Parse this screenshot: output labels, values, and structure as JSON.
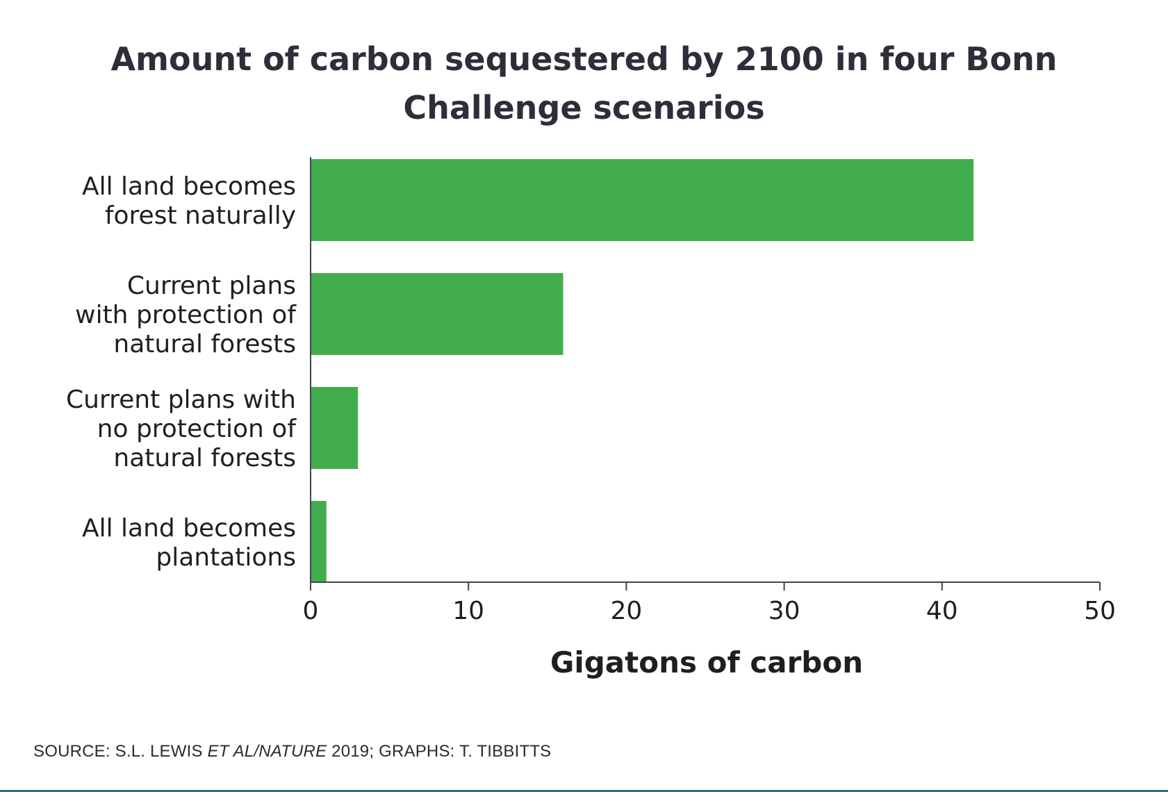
{
  "chart_data": {
    "type": "bar",
    "orientation": "horizontal",
    "title": "Amount of carbon sequestered by 2100 in four Bonn Challenge scenarios",
    "categories": [
      [
        "All land becomes",
        "forest naturally"
      ],
      [
        "Current plans",
        "with protection of",
        "natural forests"
      ],
      [
        "Current plans with",
        "no protection of",
        "natural forests"
      ],
      [
        "All land becomes",
        "plantations"
      ]
    ],
    "values": [
      42,
      16,
      3,
      1
    ],
    "xlabel": "Gigatons of carbon",
    "ylabel": "",
    "xlim": [
      0,
      50
    ],
    "ticks": [
      "0",
      "10",
      "20",
      "30",
      "40",
      "50"
    ],
    "grid": false,
    "bar_color": "#42ad4e"
  },
  "source": {
    "prefix": "SOURCE: S.L. LEWIS ",
    "italic": "ET AL/NATURE",
    "suffix": " 2019; GRAPHS: T. TIBBITTS"
  },
  "colors": {
    "title": "#2e2e3a",
    "text": "#1f1f1f",
    "axis": "#444444",
    "rule": "#2f6f7a"
  }
}
